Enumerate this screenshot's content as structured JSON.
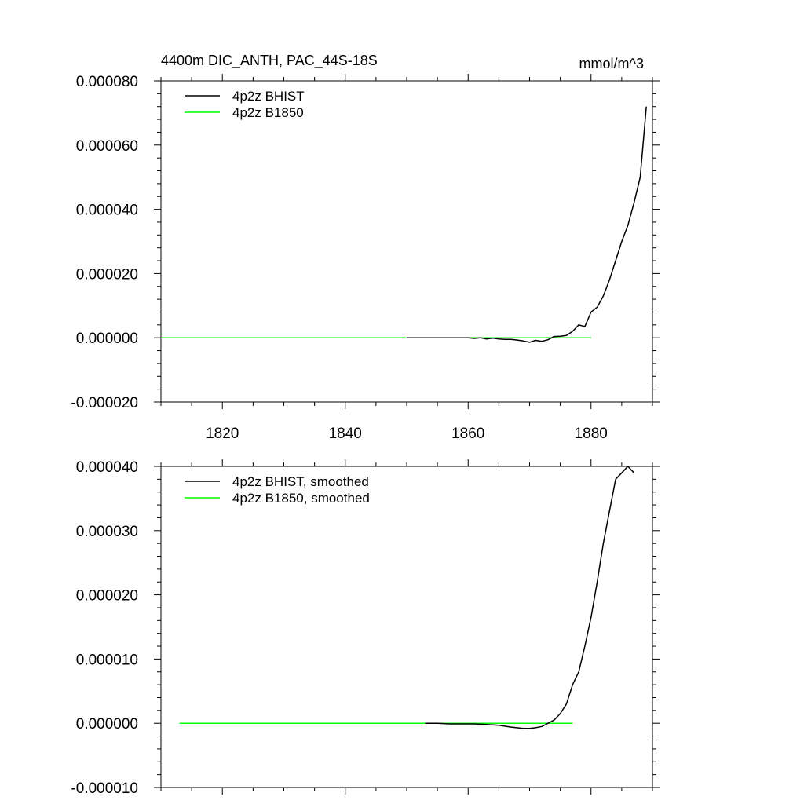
{
  "chart_data": [
    {
      "type": "line",
      "title": "4400m DIC_ANTH, PAC_44S-18S",
      "units": "mmol/m^3",
      "xlim": [
        1810,
        1890
      ],
      "ylim": [
        -2e-05,
        8e-05
      ],
      "xticks": [
        1820,
        1840,
        1860,
        1880
      ],
      "xtick_labels": [
        "1820",
        "1840",
        "1860",
        "1880"
      ],
      "yticks": [
        -2e-05,
        0,
        2e-05,
        4e-05,
        6e-05,
        8e-05
      ],
      "ytick_labels": [
        "-0.000020",
        "0.000000",
        "0.000020",
        "0.000040",
        "0.000060",
        "0.000080"
      ],
      "legend_position": "top-left",
      "series": [
        {
          "name": "4p2z BHIST",
          "color": "#000000",
          "x": [
            1850,
            1851,
            1852,
            1853,
            1854,
            1855,
            1856,
            1857,
            1858,
            1859,
            1860,
            1861,
            1862,
            1863,
            1864,
            1865,
            1866,
            1867,
            1868,
            1869,
            1870,
            1871,
            1872,
            1873,
            1874,
            1875,
            1876,
            1877,
            1878,
            1879,
            1880,
            1881,
            1882,
            1883,
            1884,
            1885,
            1886,
            1887,
            1888,
            1889
          ],
          "values": [
            0,
            0,
            0,
            0,
            0,
            0,
            0,
            0,
            0,
            0,
            0,
            -2e-07,
            0,
            -4e-07,
            -1e-07,
            -4e-07,
            -5e-07,
            -5e-07,
            -7e-07,
            -1e-06,
            -1.4e-06,
            -8e-07,
            -1.1e-06,
            -6e-07,
            4e-07,
            5e-07,
            7e-07,
            2e-06,
            4e-06,
            3.5e-06,
            8e-06,
            9.5e-06,
            1.3e-05,
            1.8e-05,
            2.4e-05,
            3e-05,
            3.5e-05,
            4.2e-05,
            5e-05,
            7.2e-05
          ]
        },
        {
          "name": "4p2z B1850",
          "color": "#00ff00",
          "x": [
            1810,
            1880
          ],
          "values": [
            0,
            0
          ]
        }
      ]
    },
    {
      "type": "line",
      "title": "",
      "xlim": [
        1810,
        1890
      ],
      "ylim": [
        -1e-05,
        4e-05
      ],
      "xticks": [
        1820,
        1840,
        1860,
        1880
      ],
      "yticks": [
        -1e-05,
        0,
        1e-05,
        2e-05,
        3e-05,
        4e-05
      ],
      "ytick_labels": [
        "-0.000010",
        "0.000000",
        "0.000010",
        "0.000020",
        "0.000030",
        "0.000040"
      ],
      "legend_position": "top-left",
      "series": [
        {
          "name": "4p2z BHIST, smoothed",
          "color": "#000000",
          "x": [
            1853,
            1855,
            1857,
            1859,
            1861,
            1863,
            1865,
            1867,
            1869,
            1870,
            1871,
            1872,
            1873,
            1874,
            1875,
            1876,
            1877,
            1878,
            1879,
            1880,
            1881,
            1882,
            1883,
            1884,
            1885,
            1886,
            1887
          ],
          "values": [
            0,
            0,
            -1e-07,
            -1e-07,
            -1e-07,
            -2e-07,
            -3e-07,
            -6e-07,
            -8e-07,
            -8e-07,
            -7e-07,
            -5e-07,
            0,
            5e-07,
            1.5e-06,
            3e-06,
            6e-06,
            8e-06,
            1.2e-05,
            1.65e-05,
            2.2e-05,
            2.8e-05,
            3.3e-05,
            3.8e-05,
            3.9e-05,
            4e-05,
            3.9e-05
          ]
        },
        {
          "name": "4p2z B1850, smoothed",
          "color": "#00ff00",
          "x": [
            1813,
            1877
          ],
          "values": [
            0,
            0
          ]
        }
      ]
    }
  ]
}
